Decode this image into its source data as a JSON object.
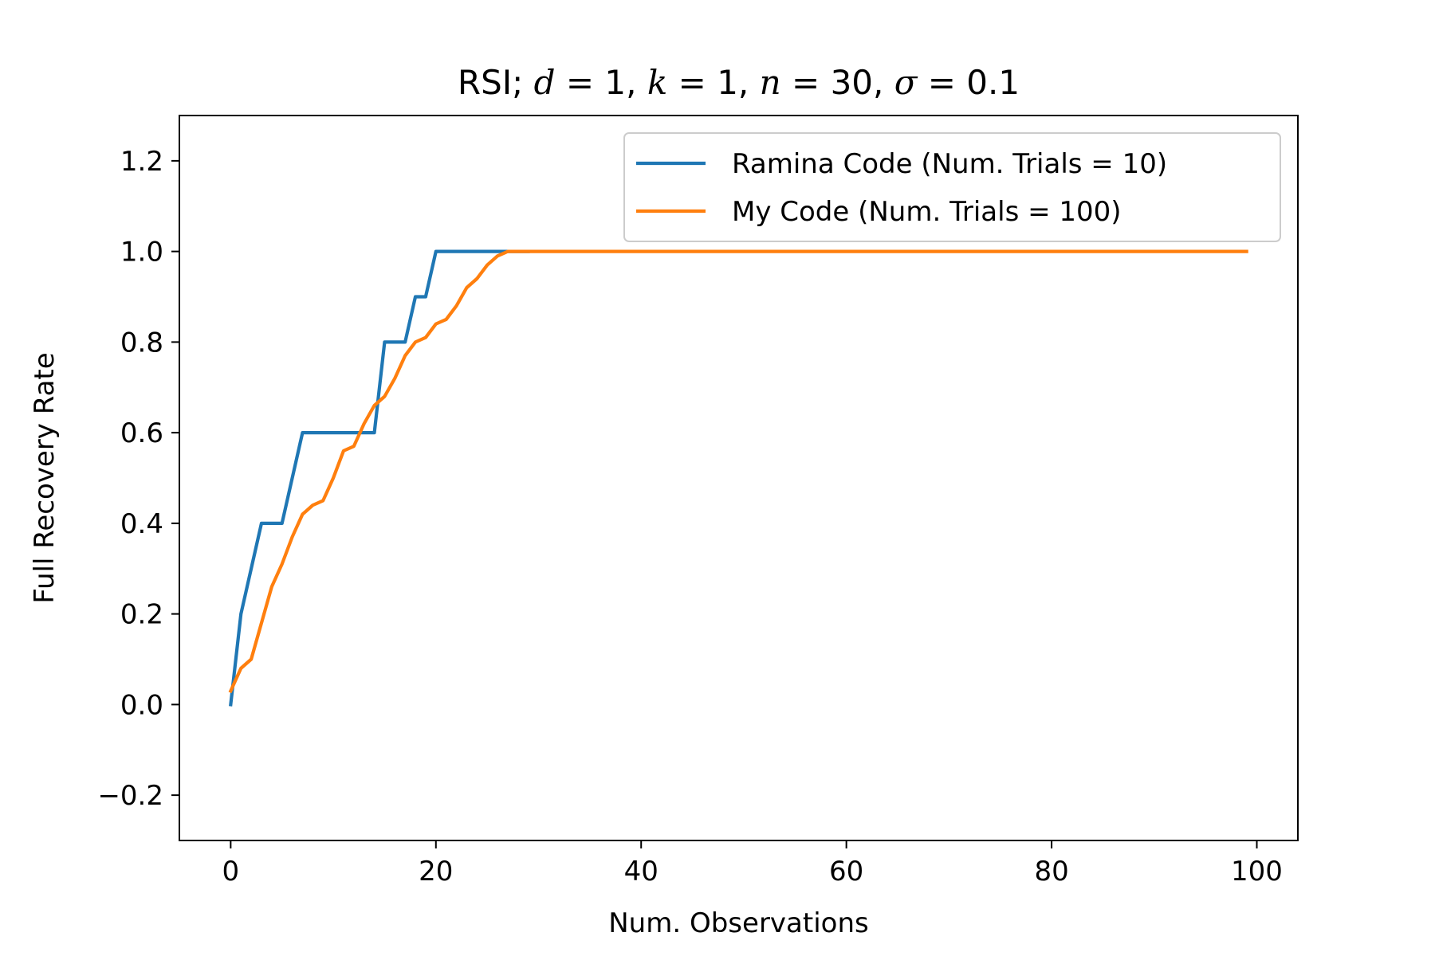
{
  "chart_data": {
    "type": "line",
    "title": {
      "prefix": "RSI; ",
      "params": [
        {
          "symbol": "d",
          "value": "1"
        },
        {
          "symbol": "k",
          "value": "1"
        },
        {
          "symbol": "n",
          "value": "30"
        },
        {
          "symbol": "σ",
          "value": "0.1"
        }
      ]
    },
    "xlabel": "Num. Observations",
    "ylabel": "Full Recovery Rate",
    "xlim": [
      -5,
      104
    ],
    "ylim": [
      -0.3,
      1.3
    ],
    "xticks": [
      0,
      20,
      40,
      60,
      80,
      100
    ],
    "xtick_labels": [
      "0",
      "20",
      "40",
      "60",
      "80",
      "100"
    ],
    "yticks": [
      -0.2,
      0.0,
      0.2,
      0.4,
      0.6,
      0.8,
      1.0,
      1.2
    ],
    "ytick_labels": [
      "−0.2",
      "0.0",
      "0.2",
      "0.4",
      "0.6",
      "0.8",
      "1.0",
      "1.2"
    ],
    "grid": false,
    "legend_position": "top-right",
    "series": [
      {
        "name": "Ramina Code (Num. Trials = 10)",
        "color": "#1f77b4",
        "x": [
          0,
          1,
          2,
          3,
          4,
          5,
          6,
          7,
          8,
          9,
          10,
          11,
          12,
          13,
          14,
          15,
          16,
          17,
          18,
          19,
          20,
          21,
          22,
          23,
          24,
          25,
          26,
          27,
          28,
          29
        ],
        "y": [
          0.0,
          0.2,
          0.3,
          0.4,
          0.4,
          0.4,
          0.5,
          0.6,
          0.6,
          0.6,
          0.6,
          0.6,
          0.6,
          0.6,
          0.6,
          0.8,
          0.8,
          0.8,
          0.9,
          0.9,
          1.0,
          1.0,
          1.0,
          1.0,
          1.0,
          1.0,
          1.0,
          1.0,
          1.0,
          1.0
        ]
      },
      {
        "name": "My Code (Num. Trials = 100)",
        "color": "#ff7f0e",
        "x": [
          0,
          1,
          2,
          3,
          4,
          5,
          6,
          7,
          8,
          9,
          10,
          11,
          12,
          13,
          14,
          15,
          16,
          17,
          18,
          19,
          20,
          21,
          22,
          23,
          24,
          25,
          26,
          27,
          28,
          29,
          30,
          35,
          40,
          45,
          50,
          55,
          60,
          65,
          70,
          75,
          80,
          85,
          90,
          95,
          99
        ],
        "y": [
          0.03,
          0.08,
          0.1,
          0.18,
          0.26,
          0.31,
          0.37,
          0.42,
          0.44,
          0.45,
          0.5,
          0.56,
          0.57,
          0.62,
          0.66,
          0.68,
          0.72,
          0.77,
          0.8,
          0.81,
          0.84,
          0.85,
          0.88,
          0.92,
          0.94,
          0.97,
          0.99,
          1.0,
          1.0,
          1.0,
          1.0,
          1.0,
          1.0,
          1.0,
          1.0,
          1.0,
          1.0,
          1.0,
          1.0,
          1.0,
          1.0,
          1.0,
          1.0,
          1.0,
          1.0
        ]
      }
    ]
  }
}
